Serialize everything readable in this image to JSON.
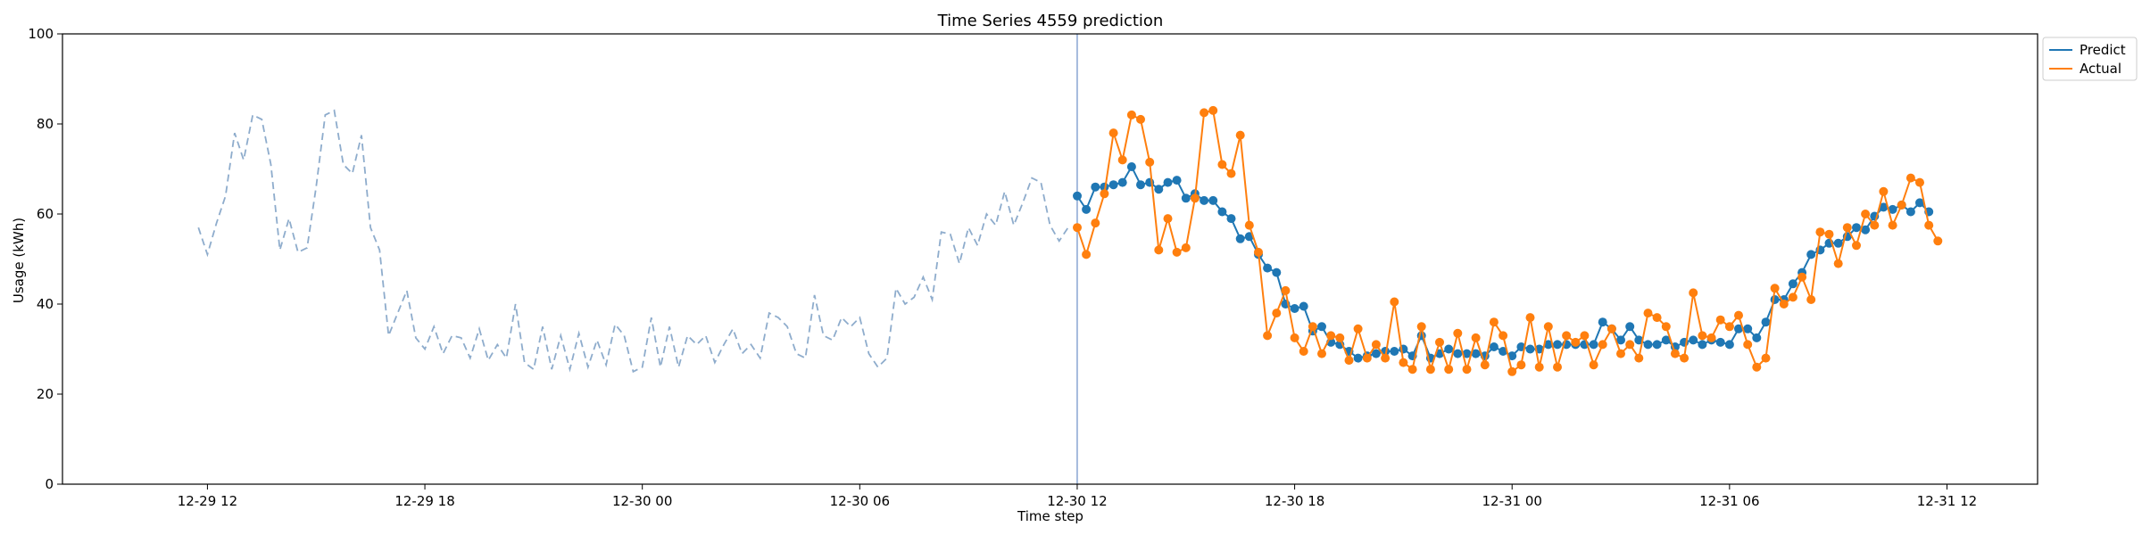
{
  "chart_data": {
    "type": "line",
    "title": "Time Series 4559 prediction",
    "xlabel": "Time step",
    "ylabel": "Usage (kWh)",
    "ylim": [
      0,
      100
    ],
    "y_ticks": [
      "0",
      "20",
      "40",
      "60",
      "80",
      "100"
    ],
    "x_range": [
      "2023-12-29T08:00",
      "2023-12-31T14:30"
    ],
    "x_ticks": [
      {
        "t": "2023-12-29T12:00",
        "label": "12-29 12"
      },
      {
        "t": "2023-12-29T18:00",
        "label": "12-29 18"
      },
      {
        "t": "2023-12-30T00:00",
        "label": "12-30 00"
      },
      {
        "t": "2023-12-30T06:00",
        "label": "12-30 06"
      },
      {
        "t": "2023-12-30T12:00",
        "label": "12-30 12"
      },
      {
        "t": "2023-12-30T18:00",
        "label": "12-30 18"
      },
      {
        "t": "2023-12-31T00:00",
        "label": "12-31 00"
      },
      {
        "t": "2023-12-31T06:00",
        "label": "12-31 06"
      },
      {
        "t": "2023-12-31T12:00",
        "label": "12-31 12"
      }
    ],
    "grid": false,
    "legend_position": "upper-right-outside",
    "forecast_start": "2023-12-30T12:00",
    "step_minutes": 15,
    "series": [
      {
        "name": "",
        "style": "dashed",
        "color": "#8eaccc",
        "start": "2023-12-29T11:45",
        "values": [
          57,
          51,
          58,
          64,
          78,
          72,
          82,
          81,
          71,
          52,
          59,
          51.5,
          52.5,
          66,
          82,
          83,
          71,
          69,
          77.5,
          57,
          52,
          33,
          38,
          43,
          32.5,
          30,
          35,
          29,
          33,
          32.5,
          28,
          34.5,
          27.5,
          31,
          28,
          40,
          27,
          25.5,
          35,
          25.5,
          33,
          25.5,
          33.5,
          26,
          32,
          26.5,
          35.5,
          33,
          25,
          26,
          37,
          26,
          35,
          26,
          33,
          31,
          33,
          27,
          31,
          34.5,
          29,
          31,
          28,
          38,
          37,
          35,
          29,
          28,
          42,
          33,
          32,
          37,
          35,
          37,
          29,
          26,
          28,
          43.5,
          40,
          41.5,
          46,
          41,
          56,
          55.5,
          49,
          57,
          53,
          60,
          57.5,
          65,
          57.5,
          62.5,
          68,
          67,
          57.5,
          54,
          57
        ]
      },
      {
        "name": "Predict",
        "style": "solid-markers",
        "color": "#1f77b4",
        "start": "2023-12-30T12:00",
        "values": [
          64,
          61,
          66,
          66,
          66.5,
          67,
          70.5,
          66.5,
          67,
          65.5,
          67,
          67.5,
          63.5,
          64.5,
          63,
          63,
          60.5,
          59,
          54.5,
          55,
          51,
          48,
          47,
          40,
          39,
          39.5,
          34,
          35,
          31.5,
          31,
          29.5,
          28,
          28.5,
          29,
          29.5,
          29.5,
          30,
          28.5,
          33,
          28,
          29,
          30,
          29,
          29,
          29,
          28.5,
          30.5,
          29.5,
          28.5,
          30.5,
          30,
          30,
          31,
          31,
          31,
          31,
          31,
          31,
          36,
          34.5,
          32,
          35,
          32,
          31,
          31,
          32,
          30.5,
          31.5,
          32,
          31,
          32,
          31.5,
          31,
          34.5,
          34.5,
          32.5,
          36,
          41,
          41,
          44.5,
          47,
          51,
          52,
          53.5,
          53.5,
          55,
          57,
          56.5,
          59.5,
          61.5,
          61,
          62,
          60.5,
          62.5,
          60.5
        ]
      },
      {
        "name": "Actual",
        "style": "solid-markers",
        "color": "#ff7f0e",
        "start": "2023-12-30T12:00",
        "values": [
          57,
          51,
          58,
          64.5,
          78,
          72,
          82,
          81,
          71.5,
          52,
          59,
          51.5,
          52.5,
          63.5,
          82.5,
          83,
          71,
          69,
          77.5,
          57.5,
          51.5,
          33,
          38,
          43,
          32.5,
          29.5,
          35,
          29,
          33,
          32.5,
          27.5,
          34.5,
          28,
          31,
          28,
          40.5,
          27,
          25.5,
          35,
          25.5,
          31.5,
          25.5,
          33.5,
          25.5,
          32.5,
          26.5,
          36,
          33,
          25,
          26.5,
          37,
          26,
          35,
          26,
          33,
          31.5,
          33,
          26.5,
          31,
          34.5,
          29,
          31,
          28,
          38,
          37,
          35,
          29,
          28,
          42.5,
          33,
          32.5,
          36.5,
          35,
          37.5,
          31,
          26,
          28,
          43.5,
          40,
          41.5,
          46,
          41,
          56,
          55.5,
          49,
          57,
          53,
          60,
          57.5,
          65,
          57.5,
          62,
          68,
          67,
          57.5,
          54
        ]
      }
    ]
  }
}
